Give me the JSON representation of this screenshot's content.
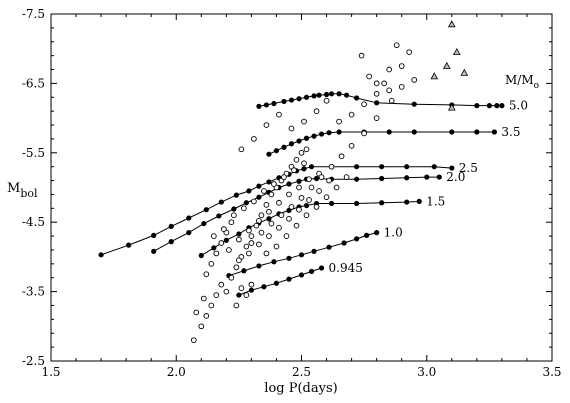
{
  "chart_data": {
    "type": "scatter",
    "xlabel": "log P(days)",
    "ylabel_main": "M",
    "ylabel_sub": "bol",
    "xlim": [
      1.5,
      3.5
    ],
    "ylim": [
      -2.5,
      -7.5
    ],
    "y_inverted": true,
    "x_ticks": [
      1.5,
      2.0,
      2.5,
      3.0,
      3.5
    ],
    "x_tick_labels": [
      "1.5",
      "2.0",
      "2.5",
      "3.0",
      "3.5"
    ],
    "y_ticks": [
      -2.5,
      -3.5,
      -4.5,
      -5.5,
      -6.5,
      -7.5
    ],
    "y_tick_labels": [
      "-2.5",
      "-3.5",
      "-4.5",
      "-5.5",
      "-6.5",
      "-7.5"
    ],
    "legend_title_main": "M/M",
    "legend_title_sub": "o",
    "model_series": [
      {
        "name": "5.0",
        "x": [
          2.33,
          2.36,
          2.39,
          2.43,
          2.46,
          2.49,
          2.52,
          2.55,
          2.57,
          2.6,
          2.62,
          2.65,
          2.68,
          2.72,
          2.8,
          2.95,
          3.1,
          3.2,
          3.25,
          3.28,
          3.3
        ],
        "y": [
          -6.17,
          -6.19,
          -6.21,
          -6.24,
          -6.26,
          -6.28,
          -6.3,
          -6.32,
          -6.33,
          -6.34,
          -6.35,
          -6.35,
          -6.33,
          -6.29,
          -6.22,
          -6.2,
          -6.19,
          -6.18,
          -6.18,
          -6.18,
          -6.18
        ]
      },
      {
        "name": "3.5",
        "x": [
          2.37,
          2.4,
          2.43,
          2.46,
          2.49,
          2.52,
          2.55,
          2.58,
          2.61,
          2.65,
          2.75,
          2.85,
          2.95,
          3.1,
          3.2,
          3.27
        ],
        "y": [
          -5.48,
          -5.53,
          -5.58,
          -5.63,
          -5.67,
          -5.71,
          -5.74,
          -5.77,
          -5.79,
          -5.8,
          -5.8,
          -5.8,
          -5.8,
          -5.8,
          -5.8,
          -5.8
        ]
      },
      {
        "name": "2.5",
        "x": [
          1.7,
          1.81,
          1.91,
          1.98,
          2.05,
          2.12,
          2.18,
          2.24,
          2.29,
          2.33,
          2.37,
          2.41,
          2.45,
          2.48,
          2.51,
          2.54,
          2.62,
          2.72,
          2.82,
          2.92,
          3.03,
          3.1
        ],
        "y": [
          -4.03,
          -4.17,
          -4.31,
          -4.44,
          -4.56,
          -4.68,
          -4.79,
          -4.89,
          -4.95,
          -5.02,
          -5.08,
          -5.14,
          -5.19,
          -5.24,
          -5.27,
          -5.3,
          -5.3,
          -5.3,
          -5.3,
          -5.3,
          -5.3,
          -5.28
        ]
      },
      {
        "name": "2.0",
        "x": [
          1.91,
          1.98,
          2.05,
          2.11,
          2.17,
          2.23,
          2.28,
          2.33,
          2.37,
          2.41,
          2.45,
          2.49,
          2.52,
          2.56,
          2.62,
          2.72,
          2.82,
          2.92,
          3.0,
          3.05
        ],
        "y": [
          -4.08,
          -4.22,
          -4.35,
          -4.48,
          -4.59,
          -4.69,
          -4.78,
          -4.86,
          -4.93,
          -5.0,
          -5.05,
          -5.09,
          -5.12,
          -5.13,
          -5.12,
          -5.12,
          -5.13,
          -5.14,
          -5.15,
          -5.15
        ]
      },
      {
        "name": "1.5",
        "x": [
          2.1,
          2.15,
          2.2,
          2.25,
          2.29,
          2.33,
          2.37,
          2.41,
          2.45,
          2.49,
          2.52,
          2.56,
          2.62,
          2.72,
          2.82,
          2.92,
          2.97
        ],
        "y": [
          -4.02,
          -4.13,
          -4.24,
          -4.33,
          -4.42,
          -4.49,
          -4.55,
          -4.62,
          -4.67,
          -4.72,
          -4.74,
          -4.77,
          -4.77,
          -4.77,
          -4.78,
          -4.79,
          -4.8
        ]
      },
      {
        "name": "1.0",
        "x": [
          2.21,
          2.27,
          2.33,
          2.39,
          2.45,
          2.5,
          2.55,
          2.61,
          2.67,
          2.72,
          2.76,
          2.8
        ],
        "y": [
          -3.73,
          -3.8,
          -3.87,
          -3.93,
          -3.98,
          -4.03,
          -4.08,
          -4.14,
          -4.2,
          -4.26,
          -4.31,
          -4.35
        ]
      },
      {
        "name": "0.945",
        "x": [
          2.25,
          2.3,
          2.35,
          2.4,
          2.45,
          2.5,
          2.54,
          2.58
        ],
        "y": [
          -3.45,
          -3.52,
          -3.57,
          -3.62,
          -3.68,
          -3.74,
          -3.79,
          -3.84
        ]
      }
    ],
    "observed_circles": {
      "x": [
        2.07,
        2.1,
        2.12,
        2.14,
        2.16,
        2.08,
        2.11,
        2.18,
        2.2,
        2.22,
        2.24,
        2.26,
        2.28,
        2.3,
        2.12,
        2.14,
        2.16,
        2.18,
        2.2,
        2.22,
        2.24,
        2.26,
        2.28,
        2.3,
        2.32,
        2.34,
        2.36,
        2.38,
        2.4,
        2.42,
        2.44,
        2.46,
        2.48,
        2.5,
        2.52,
        2.15,
        2.19,
        2.23,
        2.27,
        2.31,
        2.35,
        2.39,
        2.43,
        2.47,
        2.51,
        2.21,
        2.25,
        2.29,
        2.33,
        2.37,
        2.41,
        2.45,
        2.49,
        2.53,
        2.57,
        2.25,
        2.29,
        2.33,
        2.37,
        2.41,
        2.45,
        2.49,
        2.53,
        2.57,
        2.61,
        2.3,
        2.34,
        2.38,
        2.42,
        2.46,
        2.5,
        2.54,
        2.58,
        2.62,
        2.66,
        2.7,
        2.75,
        2.8,
        2.85,
        2.36,
        2.4,
        2.44,
        2.48,
        2.52,
        2.56,
        2.6,
        2.64,
        2.68,
        2.26,
        2.31,
        2.36,
        2.41,
        2.46,
        2.51,
        2.56,
        2.6,
        2.65,
        2.7,
        2.75,
        2.8,
        2.85,
        2.9,
        2.95,
        2.74,
        2.77,
        2.8,
        2.83,
        2.86,
        2.88,
        2.9,
        2.93
      ],
      "y": [
        -2.8,
        -3.0,
        -3.15,
        -3.3,
        -3.45,
        -3.2,
        -3.4,
        -3.6,
        -3.5,
        -3.7,
        -3.3,
        -3.55,
        -3.45,
        -3.6,
        -3.75,
        -3.9,
        -4.05,
        -4.2,
        -4.35,
        -4.5,
        -3.85,
        -4.0,
        -4.15,
        -4.3,
        -4.45,
        -4.6,
        -4.75,
        -4.9,
        -5.0,
        -5.1,
        -5.2,
        -5.3,
        -5.4,
        -5.5,
        -5.55,
        -4.3,
        -4.4,
        -4.6,
        -4.7,
        -4.8,
        -4.95,
        -5.05,
        -5.15,
        -5.25,
        -5.35,
        -4.1,
        -4.25,
        -4.38,
        -4.52,
        -4.65,
        -4.78,
        -4.9,
        -5.0,
        -5.12,
        -5.2,
        -3.95,
        -4.05,
        -4.18,
        -4.3,
        -4.42,
        -4.55,
        -4.68,
        -4.82,
        -4.95,
        -5.1,
        -4.2,
        -4.35,
        -4.48,
        -4.6,
        -4.72,
        -4.85,
        -5.0,
        -5.15,
        -5.3,
        -5.45,
        -5.6,
        -6.2,
        -6.5,
        -6.7,
        -4.05,
        -4.15,
        -4.3,
        -4.45,
        -4.6,
        -4.72,
        -4.86,
        -5.0,
        -5.15,
        -5.55,
        -5.7,
        -5.9,
        -6.05,
        -5.85,
        -5.95,
        -6.1,
        -6.25,
        -5.95,
        -6.05,
        -5.78,
        -6.0,
        -6.4,
        -6.45,
        -6.55,
        -6.9,
        -6.6,
        -6.35,
        -6.5,
        -6.25,
        -7.05,
        -6.75,
        -6.95
      ]
    },
    "observed_triangles": {
      "x": [
        3.03,
        3.08,
        3.12,
        3.1,
        3.15,
        3.1
      ],
      "y": [
        -6.6,
        -6.75,
        -6.95,
        -7.35,
        -6.65,
        -6.15
      ]
    }
  }
}
